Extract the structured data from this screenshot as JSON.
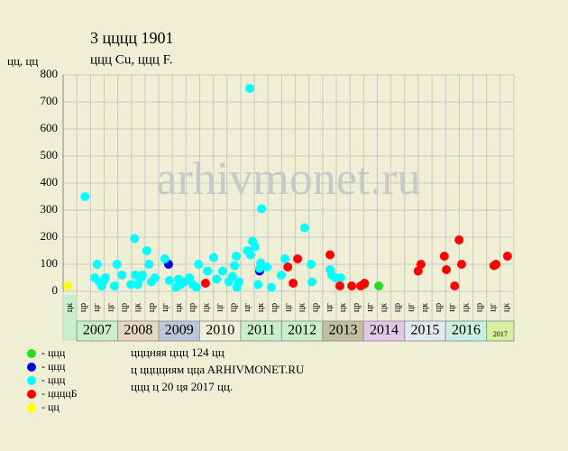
{
  "chart_data": {
    "type": "scatter",
    "title": "3 цццц 1901",
    "subtitle": "ццц Cu, ццц F.",
    "y_label": "цц, цц",
    "watermark": "arhivmonet.ru",
    "xlim": [
      2006.667,
      2017.667
    ],
    "ylim": [
      0,
      800
    ],
    "yticks": [
      0,
      100,
      200,
      300,
      400,
      500,
      600,
      700,
      800
    ],
    "grid": true,
    "columns": [
      "цк",
      "цр",
      "цг",
      "цг",
      "цр",
      "цк",
      "цр",
      "цг",
      "цк",
      "цр",
      "цк",
      "цг",
      "цр",
      "цг",
      "цк",
      "цр",
      "цг",
      "цк",
      "цр",
      "цг",
      "цк",
      "цр",
      "цг",
      "цк",
      "цр",
      "цг",
      "цк",
      "цр",
      "цг",
      "цк",
      "цр",
      "цг",
      "цк"
    ],
    "years": [
      "2007",
      "2008",
      "2009",
      "2010",
      "2011",
      "2012",
      "2013",
      "2014",
      "2015",
      "2016",
      "2017"
    ],
    "year_colors": [
      "#c8f0c8",
      "#e6d8c0",
      "#b8c8d8",
      "#f0f0d8",
      "#c8f0c8",
      "#c8f0c8",
      "#c0c0a0",
      "#e0c8e8",
      "#e0e8f0",
      "#c8f0e0",
      "#d8f0a0"
    ],
    "series": [
      {
        "name": "- ццц",
        "color": "#22dd22",
        "x": [
          2014.02,
          2014.37
        ],
        "values": [
          25,
          20
        ]
      },
      {
        "name": "- ццц",
        "color": "#0000dd",
        "x": [
          2009.24,
          2011.46
        ],
        "values": [
          100,
          75
        ]
      },
      {
        "name": "- ццц",
        "color": "#00ffff",
        "x": [
          2007.2,
          2007.44,
          2007.5,
          2007.55,
          2007.61,
          2007.66,
          2007.7,
          2007.92,
          2007.98,
          2008.1,
          2008.32,
          2008.41,
          2008.43,
          2008.49,
          2008.56,
          2008.6,
          2008.71,
          2008.76,
          2008.82,
          2008.91,
          2009.15,
          2009.26,
          2009.42,
          2009.48,
          2009.53,
          2009.62,
          2009.75,
          2009.83,
          2009.97,
          2009.92,
          2010.19,
          2010.34,
          2010.41,
          2010.56,
          2010.71,
          2010.8,
          2010.85,
          2010.89,
          2010.91,
          2010.96,
          2011.16,
          2011.22,
          2011.24,
          2011.29,
          2011.35,
          2011.42,
          2011.46,
          2011.49,
          2011.51,
          2011.64,
          2011.75,
          2011.99,
          2012.08,
          2012.56,
          2012.72,
          2012.74,
          2013.18,
          2013.22,
          2013.31,
          2013.44
        ],
        "values": [
          350,
          50,
          100,
          35,
          20,
          40,
          50,
          20,
          100,
          60,
          25,
          195,
          60,
          25,
          50,
          60,
          150,
          100,
          35,
          50,
          120,
          40,
          15,
          45,
          25,
          35,
          50,
          25,
          100,
          15,
          75,
          125,
          45,
          75,
          35,
          55,
          95,
          130,
          15,
          35,
          150,
          750,
          135,
          185,
          165,
          25,
          85,
          105,
          305,
          90,
          15,
          60,
          120,
          235,
          100,
          35,
          80,
          60,
          50,
          50
        ]
      },
      {
        "name": "- ццццБ",
        "color": "#ff0000",
        "x": [
          2010.14,
          2012.15,
          2012.28,
          2012.39,
          2013.18,
          2013.42,
          2013.71,
          2013.93,
          2014.02,
          2015.33,
          2015.4,
          2015.97,
          2016.02,
          2016.22,
          2016.33,
          2016.39,
          2017.18,
          2017.23,
          2017.51
        ],
        "values": [
          30,
          90,
          30,
          120,
          135,
          20,
          20,
          20,
          30,
          75,
          100,
          130,
          80,
          20,
          190,
          100,
          95,
          100,
          130
        ]
      },
      {
        "name": "- цц",
        "color": "#ffff00",
        "x": [
          2006.78
        ],
        "values": [
          20
        ]
      }
    ],
    "notes": [
      "цццняя ццц 124 цц",
      "ц цццциям ццa ARHIVMONET.RU",
      "ццц ц 20 ця 2017 цц."
    ]
  }
}
